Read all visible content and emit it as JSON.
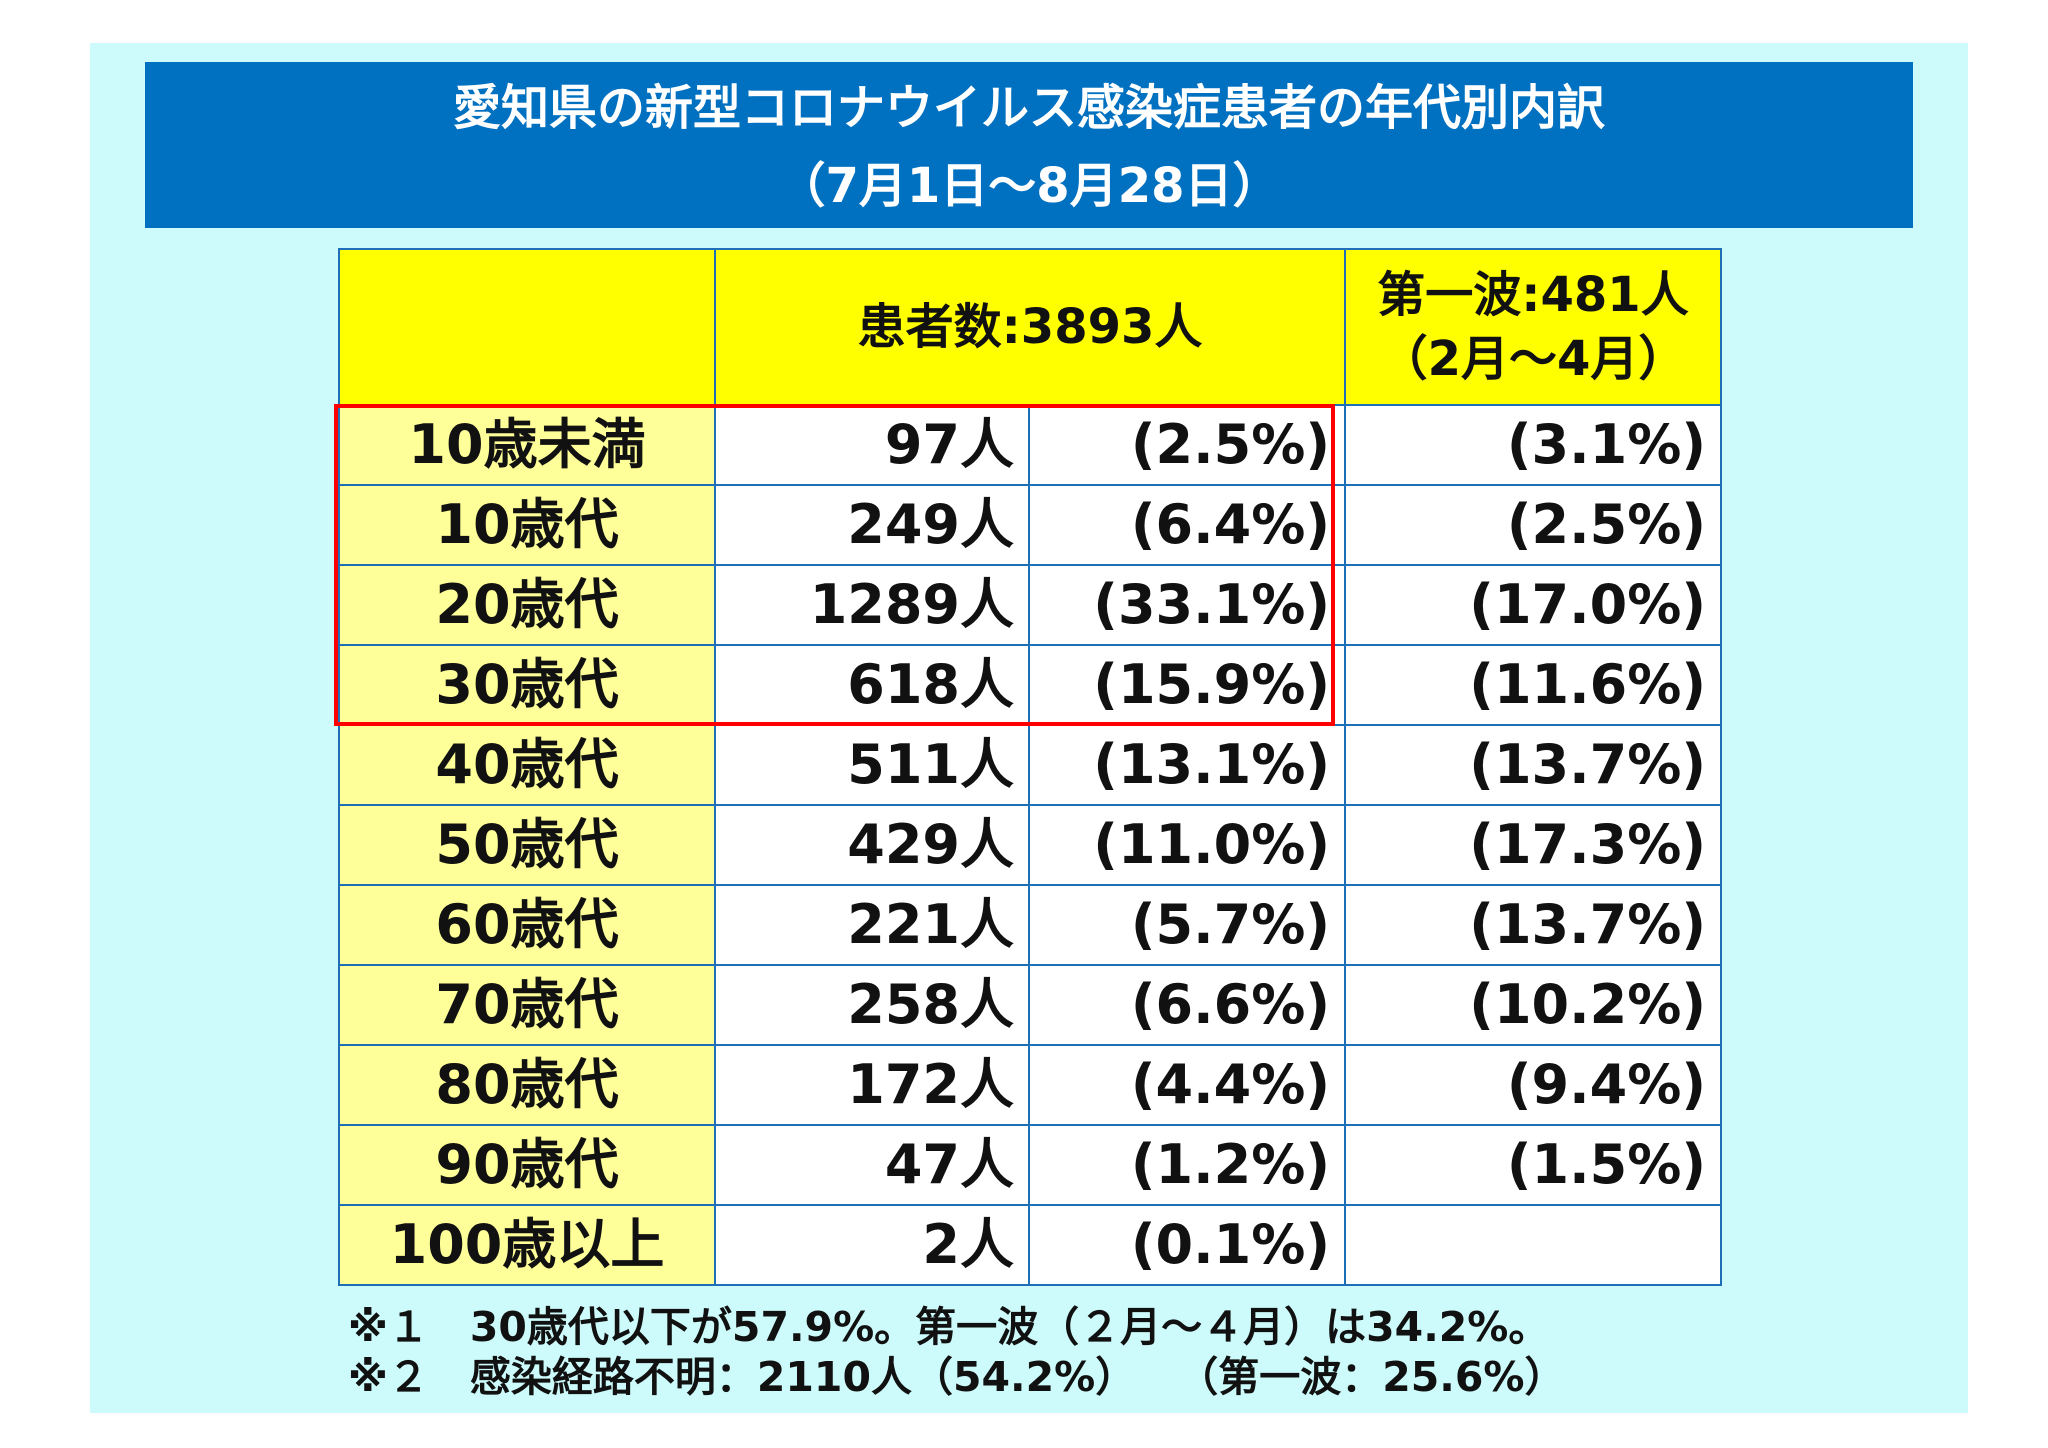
{
  "title": {
    "line1": "愛知県の新型コロナウイルス感染症患者の年代別内訳",
    "line2": "（7月1日～8月28日）"
  },
  "table": {
    "header": {
      "patients": "患者数:3893人",
      "first_wave_line1": "第一波:481人",
      "first_wave_line2": "（2月～4月）"
    },
    "rows": [
      {
        "age": "10歳未満",
        "count": "97人",
        "pct": "(2.5%)",
        "wave": "(3.1%)"
      },
      {
        "age": "10歳代",
        "count": "249人",
        "pct": "(6.4%)",
        "wave": "(2.5%)"
      },
      {
        "age": "20歳代",
        "count": "1289人",
        "pct": "(33.1%)",
        "wave": "(17.0%)"
      },
      {
        "age": "30歳代",
        "count": "618人",
        "pct": "(15.9%)",
        "wave": "(11.6%)"
      },
      {
        "age": "40歳代",
        "count": "511人",
        "pct": "(13.1%)",
        "wave": "(13.7%)"
      },
      {
        "age": "50歳代",
        "count": "429人",
        "pct": "(11.0%)",
        "wave": "(17.3%)"
      },
      {
        "age": "60歳代",
        "count": "221人",
        "pct": "(5.7%)",
        "wave": "(13.7%)"
      },
      {
        "age": "70歳代",
        "count": "258人",
        "pct": "(6.6%)",
        "wave": "(10.2%)"
      },
      {
        "age": "80歳代",
        "count": "172人",
        "pct": "(4.4%)",
        "wave": "(9.4%)"
      },
      {
        "age": "90歳代",
        "count": "47人",
        "pct": "(1.2%)",
        "wave": "(1.5%)"
      },
      {
        "age": "100歳以上",
        "count": "2人",
        "pct": "(0.1%)",
        "wave": ""
      }
    ]
  },
  "notes": {
    "note1": "※１　30歳代以下が57.9%。第一波（２月～４月）は34.2%。",
    "note2": "※２　感染経路不明：2110人（54.2%）　　（第一波：25.6%）"
  },
  "colors": {
    "title_bar": "#0070c0",
    "header_fill": "#ffff00",
    "age_fill": "#ffff99",
    "highlight_box": "#ff0000",
    "background": "#cdfbfb"
  }
}
